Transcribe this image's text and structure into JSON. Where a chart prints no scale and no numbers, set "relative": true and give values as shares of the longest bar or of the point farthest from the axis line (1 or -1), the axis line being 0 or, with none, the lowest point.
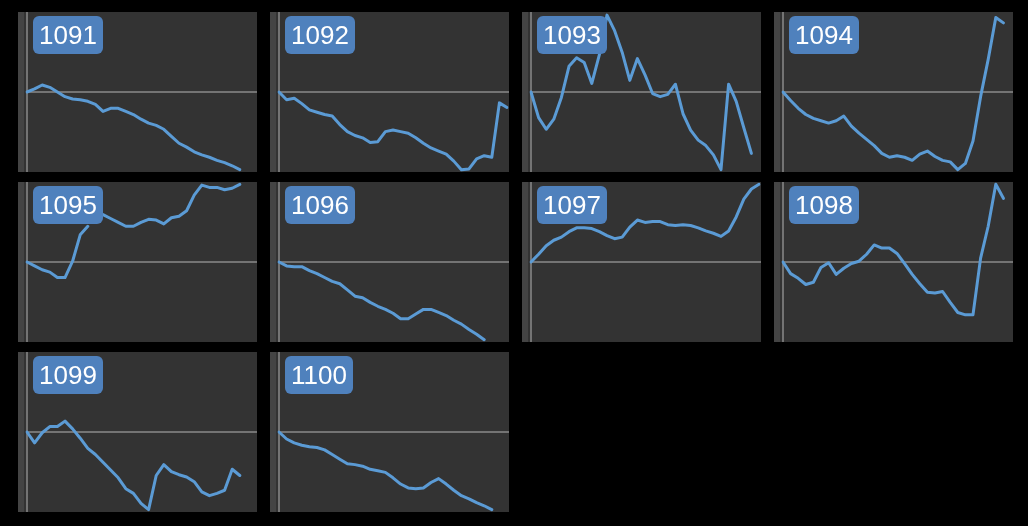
{
  "chart_data": [
    {
      "type": "line",
      "title": "1091",
      "relative": true,
      "legend": false,
      "categories": [
        null,
        null,
        null,
        null,
        null,
        null,
        null,
        null,
        null,
        null,
        null,
        null,
        null,
        null,
        null,
        null,
        null,
        null,
        null,
        null,
        null,
        null,
        null,
        null,
        null,
        null,
        null,
        null,
        null,
        null,
        null
      ],
      "series": [
        {
          "color": "#5b9bd5",
          "values": [
            0,
            0.04,
            0.09,
            0.06,
            0,
            -0.06,
            -0.09,
            -0.1,
            -0.12,
            -0.16,
            -0.25,
            -0.21,
            -0.21,
            -0.25,
            -0.29,
            -0.35,
            -0.4,
            -0.43,
            -0.48,
            -0.57,
            -0.66,
            -0.71,
            -0.77,
            -0.81,
            -0.84,
            -0.88,
            -0.91,
            -0.95,
            -1,
            null,
            null
          ]
        }
      ]
    },
    {
      "type": "line",
      "title": "1092",
      "relative": true,
      "legend": false,
      "categories": [
        null,
        null,
        null,
        null,
        null,
        null,
        null,
        null,
        null,
        null,
        null,
        null,
        null,
        null,
        null,
        null,
        null,
        null,
        null,
        null,
        null,
        null,
        null,
        null,
        null,
        null,
        null,
        null,
        null,
        null,
        null
      ],
      "series": [
        {
          "color": "#5b9bd5",
          "values": [
            0,
            -0.1,
            -0.08,
            -0.15,
            -0.23,
            -0.26,
            -0.29,
            -0.31,
            -0.42,
            -0.51,
            -0.56,
            -0.59,
            -0.65,
            -0.64,
            -0.51,
            -0.49,
            -0.51,
            -0.53,
            -0.59,
            -0.66,
            -0.72,
            -0.76,
            -0.8,
            -0.89,
            -1,
            -0.99,
            -0.86,
            -0.82,
            -0.84,
            -0.14,
            -0.2
          ]
        }
      ]
    },
    {
      "type": "line",
      "title": "1093",
      "relative": true,
      "legend": false,
      "categories": [
        null,
        null,
        null,
        null,
        null,
        null,
        null,
        null,
        null,
        null,
        null,
        null,
        null,
        null,
        null,
        null,
        null,
        null,
        null,
        null,
        null,
        null,
        null,
        null,
        null,
        null,
        null,
        null,
        null,
        null,
        null
      ],
      "series": [
        {
          "color": "#5b9bd5",
          "values": [
            0,
            -0.33,
            -0.48,
            -0.35,
            -0.07,
            0.33,
            0.44,
            0.38,
            0.11,
            0.48,
            0.99,
            0.79,
            0.51,
            0.15,
            0.43,
            0.22,
            -0.02,
            -0.06,
            -0.03,
            0.1,
            -0.28,
            -0.49,
            -0.62,
            -0.69,
            -0.81,
            -1,
            0.1,
            -0.12,
            -0.46,
            -0.79,
            null
          ]
        }
      ]
    },
    {
      "type": "line",
      "title": "1094",
      "relative": true,
      "legend": false,
      "categories": [
        null,
        null,
        null,
        null,
        null,
        null,
        null,
        null,
        null,
        null,
        null,
        null,
        null,
        null,
        null,
        null,
        null,
        null,
        null,
        null,
        null,
        null,
        null,
        null,
        null,
        null,
        null,
        null,
        null,
        null,
        null
      ],
      "series": [
        {
          "color": "#5b9bd5",
          "values": [
            0,
            -0.11,
            -0.21,
            -0.29,
            -0.34,
            -0.37,
            -0.4,
            -0.37,
            -0.31,
            -0.44,
            -0.53,
            -0.61,
            -0.69,
            -0.79,
            -0.84,
            -0.82,
            -0.84,
            -0.88,
            -0.8,
            -0.76,
            -0.83,
            -0.88,
            -0.9,
            -1,
            -0.92,
            -0.63,
            -0.06,
            0.42,
            0.96,
            0.89,
            null
          ]
        }
      ]
    },
    {
      "type": "line",
      "title": "1095",
      "relative": true,
      "legend": false,
      "categories": [
        null,
        null,
        null,
        null,
        null,
        null,
        null,
        null,
        null,
        null,
        null,
        null,
        null,
        null,
        null,
        null,
        null,
        null,
        null,
        null,
        null,
        null,
        null,
        null,
        null,
        null,
        null,
        null,
        null,
        null,
        null
      ],
      "series": [
        {
          "color": "#5b9bd5",
          "values": [
            0,
            -0.05,
            -0.1,
            -0.13,
            -0.2,
            -0.2,
            0.01,
            0.35,
            0.46,
            null,
            0.61,
            0.56,
            0.51,
            0.46,
            0.46,
            0.51,
            0.55,
            0.54,
            0.49,
            0.57,
            0.59,
            0.66,
            0.86,
            0.99,
            0.96,
            0.96,
            0.93,
            0.95,
            1,
            null,
            null
          ]
        }
      ]
    },
    {
      "type": "line",
      "title": "1096",
      "relative": true,
      "legend": false,
      "categories": [
        null,
        null,
        null,
        null,
        null,
        null,
        null,
        null,
        null,
        null,
        null,
        null,
        null,
        null,
        null,
        null,
        null,
        null,
        null,
        null,
        null,
        null,
        null,
        null,
        null,
        null,
        null,
        null,
        null,
        null,
        null
      ],
      "series": [
        {
          "color": "#5b9bd5",
          "values": [
            0,
            -0.05,
            -0.06,
            -0.06,
            -0.11,
            -0.15,
            -0.2,
            -0.25,
            -0.28,
            -0.36,
            -0.44,
            -0.46,
            -0.52,
            -0.57,
            -0.61,
            -0.66,
            -0.73,
            -0.73,
            -0.67,
            -0.61,
            -0.61,
            -0.65,
            -0.69,
            -0.75,
            -0.8,
            -0.87,
            -0.93,
            -1,
            null,
            null,
            null
          ]
        }
      ]
    },
    {
      "type": "line",
      "title": "1097",
      "relative": true,
      "legend": false,
      "categories": [
        null,
        null,
        null,
        null,
        null,
        null,
        null,
        null,
        null,
        null,
        null,
        null,
        null,
        null,
        null,
        null,
        null,
        null,
        null,
        null,
        null,
        null,
        null,
        null,
        null,
        null,
        null,
        null,
        null,
        null,
        null
      ],
      "series": [
        {
          "color": "#5b9bd5",
          "values": [
            0,
            0.1,
            0.21,
            0.28,
            0.32,
            0.39,
            0.44,
            0.44,
            0.43,
            0.39,
            0.34,
            0.3,
            0.32,
            0.45,
            0.54,
            0.51,
            0.52,
            0.52,
            0.48,
            0.47,
            0.48,
            0.47,
            0.44,
            0.4,
            0.37,
            0.33,
            0.4,
            0.58,
            0.81,
            0.94,
            1
          ]
        }
      ]
    },
    {
      "type": "line",
      "title": "1098",
      "relative": true,
      "legend": false,
      "categories": [
        null,
        null,
        null,
        null,
        null,
        null,
        null,
        null,
        null,
        null,
        null,
        null,
        null,
        null,
        null,
        null,
        null,
        null,
        null,
        null,
        null,
        null,
        null,
        null,
        null,
        null,
        null,
        null,
        null,
        null,
        null
      ],
      "series": [
        {
          "color": "#5b9bd5",
          "values": [
            0,
            -0.15,
            -0.21,
            -0.29,
            -0.26,
            -0.07,
            -0.01,
            -0.16,
            -0.08,
            -0.02,
            0.01,
            0.1,
            0.22,
            0.18,
            0.18,
            0.11,
            -0.02,
            -0.16,
            -0.28,
            -0.39,
            -0.4,
            -0.38,
            -0.52,
            -0.65,
            -0.68,
            -0.68,
            0.05,
            0.46,
            1,
            0.82,
            null
          ]
        }
      ]
    },
    {
      "type": "line",
      "title": "1099",
      "relative": true,
      "legend": false,
      "categories": [
        null,
        null,
        null,
        null,
        null,
        null,
        null,
        null,
        null,
        null,
        null,
        null,
        null,
        null,
        null,
        null,
        null,
        null,
        null,
        null,
        null,
        null,
        null,
        null,
        null,
        null,
        null,
        null,
        null,
        null,
        null
      ],
      "series": [
        {
          "color": "#5b9bd5",
          "values": [
            0,
            -0.14,
            -0.01,
            0.07,
            0.07,
            0.14,
            0.04,
            -0.08,
            -0.21,
            -0.29,
            -0.39,
            -0.49,
            -0.59,
            -0.73,
            -0.79,
            -0.92,
            -1,
            -0.56,
            -0.42,
            -0.51,
            -0.55,
            -0.58,
            -0.64,
            -0.77,
            -0.82,
            -0.79,
            -0.75,
            -0.48,
            -0.56,
            null,
            null
          ]
        }
      ]
    },
    {
      "type": "line",
      "title": "1100",
      "relative": true,
      "legend": false,
      "categories": [
        null,
        null,
        null,
        null,
        null,
        null,
        null,
        null,
        null,
        null,
        null,
        null,
        null,
        null,
        null,
        null,
        null,
        null,
        null,
        null,
        null,
        null,
        null,
        null,
        null,
        null,
        null,
        null,
        null,
        null,
        null
      ],
      "series": [
        {
          "color": "#5b9bd5",
          "values": [
            0,
            -0.09,
            -0.14,
            -0.17,
            -0.19,
            -0.2,
            -0.23,
            -0.29,
            -0.35,
            -0.41,
            -0.42,
            -0.44,
            -0.48,
            -0.5,
            -0.52,
            -0.59,
            -0.67,
            -0.72,
            -0.73,
            -0.72,
            -0.65,
            -0.6,
            -0.67,
            -0.75,
            -0.82,
            -0.86,
            -0.91,
            -0.95,
            -1,
            null,
            null
          ]
        }
      ]
    }
  ]
}
